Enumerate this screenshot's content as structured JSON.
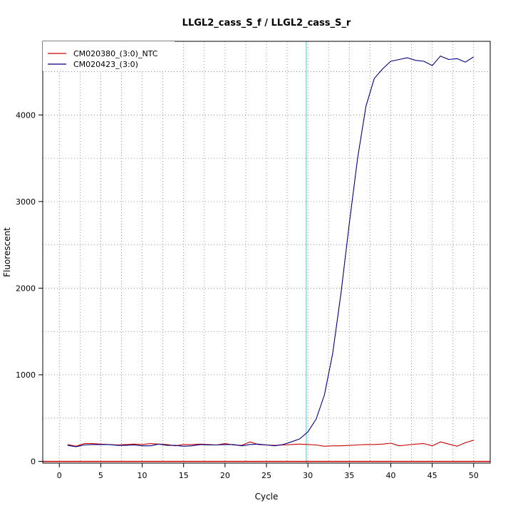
{
  "chart_data": {
    "type": "line",
    "title": "LLGL2_cass_S_f / LLGL2_cass_S_r",
    "xlabel": "Cycle",
    "ylabel": "Fluorescent",
    "xlim": [
      -2,
      52
    ],
    "ylim": [
      -20,
      4850
    ],
    "x_ticks": [
      0,
      5,
      10,
      15,
      20,
      25,
      30,
      35,
      40,
      45,
      50
    ],
    "y_ticks": [
      0,
      1000,
      2000,
      3000,
      4000
    ],
    "grid": true,
    "legend_position": "top-left",
    "threshold": {
      "value": 0,
      "color": "#cc0000"
    },
    "cycle_marker": {
      "x": 29.8,
      "color": "#00e5ee"
    },
    "x": [
      1,
      2,
      3,
      4,
      5,
      6,
      7,
      8,
      9,
      10,
      11,
      12,
      13,
      14,
      15,
      16,
      17,
      18,
      19,
      20,
      21,
      22,
      23,
      24,
      25,
      26,
      27,
      28,
      29,
      30,
      31,
      32,
      33,
      34,
      35,
      36,
      37,
      38,
      39,
      40,
      41,
      42,
      43,
      44,
      45,
      46,
      47,
      48,
      49,
      50
    ],
    "series": [
      {
        "name": "CM020380_(3:0)_NTC",
        "color": "#cc0000",
        "values": [
          195,
          175,
          205,
          205,
          200,
          195,
          190,
          195,
          200,
          195,
          205,
          200,
          195,
          180,
          195,
          195,
          200,
          195,
          190,
          205,
          190,
          185,
          225,
          195,
          190,
          185,
          190,
          195,
          200,
          195,
          190,
          175,
          180,
          180,
          185,
          190,
          195,
          195,
          200,
          210,
          180,
          190,
          200,
          205,
          180,
          225,
          200,
          175,
          215,
          245
        ]
      },
      {
        "name": "CM020423_(3:0)",
        "color": "#000080",
        "values": [
          185,
          170,
          190,
          195,
          195,
          195,
          185,
          185,
          190,
          180,
          180,
          200,
          185,
          185,
          175,
          180,
          195,
          190,
          190,
          195,
          195,
          180,
          195,
          200,
          190,
          180,
          195,
          225,
          260,
          340,
          490,
          770,
          1250,
          1950,
          2750,
          3500,
          4100,
          4420,
          4530,
          4620,
          4640,
          4660,
          4630,
          4620,
          4570,
          4680,
          4640,
          4650,
          4610,
          4670
        ]
      }
    ]
  }
}
